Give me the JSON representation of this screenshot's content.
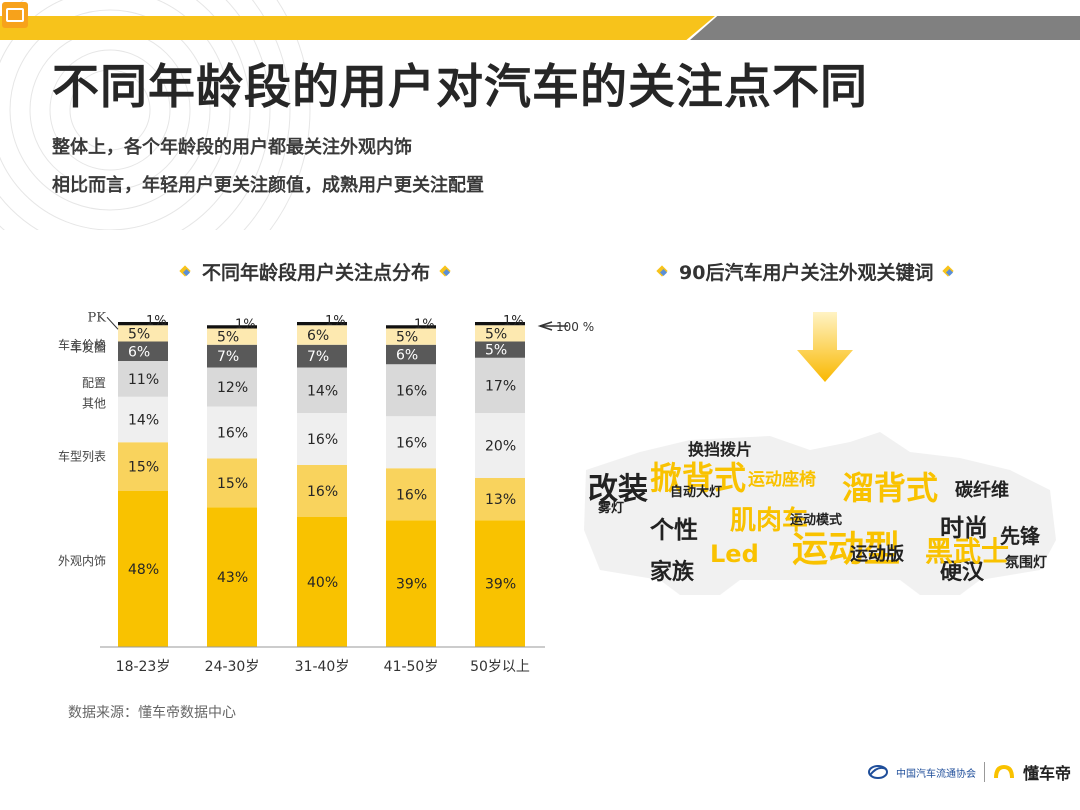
{
  "header": {
    "title": "不同年龄段的用户对汽车的关注点不同",
    "subtitle_1": "整体上，各个年龄段的用户都最关注外观内饰",
    "subtitle_2": "相比而言，年轻用户更关注颜值，成熟用户更关注配置"
  },
  "left_section": {
    "title": "不同年龄段用户关注点分布"
  },
  "right_section": {
    "title": "90后汽车用户关注外观关键词"
  },
  "source": "数据来源：懂车帝数据中心",
  "logos": {
    "association": "中国汽车流通协会",
    "brand": "懂车帝"
  },
  "chart_data": {
    "type": "bar",
    "stacked": true,
    "categories": [
      "18-23岁",
      "24-30岁",
      "31-40岁",
      "41-50岁",
      "50岁以上"
    ],
    "series": [
      {
        "name": "外观内饰",
        "values": [
          48,
          43,
          40,
          39,
          39
        ],
        "color": "#f9c200"
      },
      {
        "name": "车型列表",
        "values": [
          15,
          15,
          16,
          16,
          13
        ],
        "color": "#f9d35d"
      },
      {
        "name": "其他",
        "values": [
          14,
          16,
          16,
          16,
          20
        ],
        "color": "#efefef"
      },
      {
        "name": "配置",
        "values": [
          11,
          12,
          14,
          16,
          17
        ],
        "color": "#d9d9d9"
      },
      {
        "name": "车主价格",
        "values": [
          null,
          null,
          null,
          null,
          null
        ],
        "color": "#d9d9d9"
      },
      {
        "name": "车友圈",
        "values": [
          6,
          7,
          7,
          6,
          5
        ],
        "color": "#595959"
      },
      {
        "name": "PK",
        "values": [
          5,
          5,
          6,
          5,
          5
        ],
        "color": "#fde9b0"
      },
      {
        "name": "",
        "values": [
          1,
          1,
          1,
          1,
          1
        ],
        "color": "#111111"
      }
    ],
    "labels": [
      [
        "48%",
        "15%",
        "14%",
        "11%",
        "",
        "6%",
        "5%",
        "1%"
      ],
      [
        "43%",
        "15%",
        "16%",
        "12%",
        "",
        "7%",
        "5%",
        "1%"
      ],
      [
        "40%",
        "16%",
        "16%",
        "14%",
        "",
        "7%",
        "6%",
        "1%"
      ],
      [
        "39%",
        "16%",
        "16%",
        "16%",
        "",
        "6%",
        "5%",
        "1%"
      ],
      [
        "39%",
        "13%",
        "20%",
        "17%",
        "",
        "5%",
        "5%",
        "1%"
      ]
    ],
    "total_annotation": "100 %",
    "ylim": [
      0,
      100
    ]
  },
  "wordcloud": {
    "words": [
      {
        "text": "改装",
        "color": "#222222"
      },
      {
        "text": "掀背式",
        "color": "#f9c200"
      },
      {
        "text": "溜背式",
        "color": "#f9c200"
      },
      {
        "text": "运动型",
        "color": "#f9c200"
      },
      {
        "text": "个性",
        "color": "#222222"
      },
      {
        "text": "家族",
        "color": "#222222"
      },
      {
        "text": "肌肉车",
        "color": "#f9c200"
      },
      {
        "text": "运动版",
        "color": "#222222"
      },
      {
        "text": "时尚",
        "color": "#222222"
      },
      {
        "text": "先锋",
        "color": "#222222"
      },
      {
        "text": "硬汉",
        "color": "#222222"
      },
      {
        "text": "碳纤维",
        "color": "#222222"
      },
      {
        "text": "换挡拨片",
        "color": "#222222"
      },
      {
        "text": "运动座椅",
        "color": "#f9c200"
      },
      {
        "text": "自动大灯",
        "color": "#222222"
      },
      {
        "text": "雾灯",
        "color": "#222222"
      },
      {
        "text": "氛围灯",
        "color": "#222222"
      },
      {
        "text": "运动模式",
        "color": "#222222"
      },
      {
        "text": "Led",
        "color": "#f9c200"
      },
      {
        "text": "黑武士",
        "color": "#f9c200"
      }
    ]
  }
}
